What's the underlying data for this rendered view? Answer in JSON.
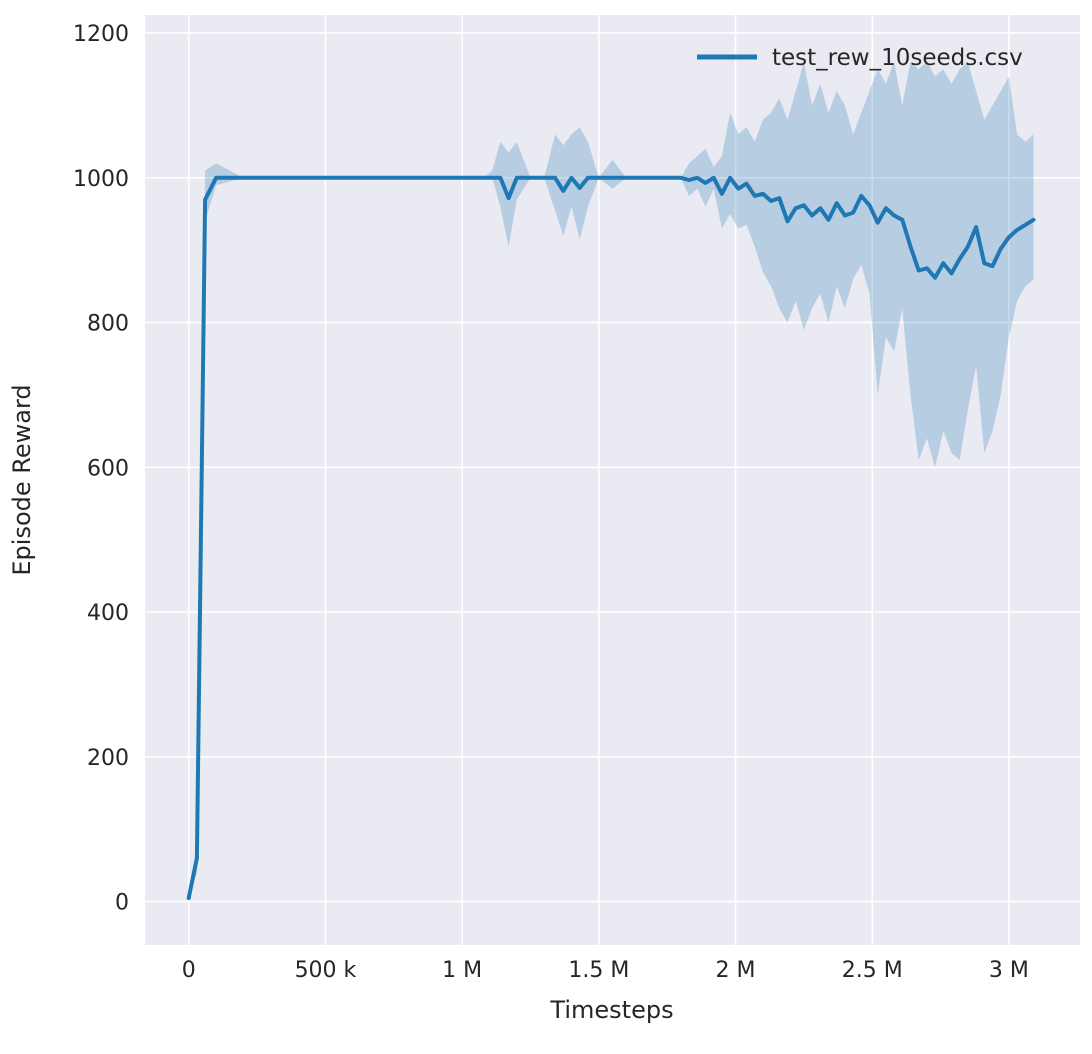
{
  "chart_data": {
    "type": "line",
    "title": "",
    "xlabel": "Timesteps",
    "ylabel": "Episode Reward",
    "grid": true,
    "legend_position": "upper right",
    "legend": [
      {
        "label": "test_rew_10seeds.csv",
        "color": "#1f77b4"
      }
    ],
    "xlim": [
      -160000,
      3260000
    ],
    "ylim": [
      -60,
      1225
    ],
    "x_ticks": {
      "values": [
        0,
        500000,
        1000000,
        1500000,
        2000000,
        2500000,
        3000000
      ],
      "labels": [
        "0",
        "500 k",
        "1 M",
        "1.5 M",
        "2 M",
        "2.5 M",
        "3 M"
      ]
    },
    "y_ticks": {
      "values": [
        0,
        200,
        400,
        600,
        800,
        1000,
        1200
      ],
      "labels": [
        "0",
        "200",
        "400",
        "600",
        "800",
        "1000",
        "1200"
      ]
    },
    "styles": {
      "figure_bg": "#ffffff",
      "plot_bg": "#eaeaf2",
      "grid_color": "#ffffff",
      "text_color": "#262626"
    },
    "series": [
      {
        "name": "test_rew_10seeds.csv",
        "color": "#1f77b4",
        "band_opacity": 0.25,
        "x": [
          0,
          30000,
          60000,
          100000,
          200000,
          400000,
          600000,
          800000,
          1000000,
          1080000,
          1110000,
          1140000,
          1170000,
          1200000,
          1250000,
          1300000,
          1340000,
          1370000,
          1400000,
          1430000,
          1460000,
          1500000,
          1550000,
          1600000,
          1700000,
          1800000,
          1830000,
          1860000,
          1890000,
          1920000,
          1950000,
          1980000,
          2010000,
          2040000,
          2070000,
          2100000,
          2130000,
          2160000,
          2190000,
          2220000,
          2250000,
          2280000,
          2310000,
          2340000,
          2370000,
          2400000,
          2430000,
          2460000,
          2490000,
          2520000,
          2550000,
          2580000,
          2610000,
          2640000,
          2670000,
          2700000,
          2730000,
          2760000,
          2790000,
          2820000,
          2850000,
          2880000,
          2910000,
          2940000,
          2970000,
          3000000,
          3030000,
          3060000,
          3090000
        ],
        "mean": [
          5,
          60,
          970,
          1000,
          1000,
          1000,
          1000,
          1000,
          1000,
          1000,
          1000,
          1000,
          972,
          1000,
          1000,
          1000,
          1000,
          982,
          1000,
          986,
          1000,
          1000,
          1000,
          1000,
          1000,
          1000,
          997,
          1000,
          993,
          1000,
          978,
          1000,
          985,
          992,
          975,
          978,
          968,
          972,
          940,
          958,
          962,
          948,
          958,
          942,
          965,
          948,
          952,
          975,
          962,
          938,
          958,
          948,
          942,
          905,
          872,
          875,
          862,
          882,
          868,
          888,
          905,
          932,
          882,
          878,
          902,
          918,
          928,
          935,
          942
        ],
        "lower": [
          5,
          40,
          940,
          990,
          1000,
          1000,
          1000,
          1000,
          1000,
          1000,
          1000,
          960,
          905,
          970,
          1000,
          1000,
          955,
          920,
          960,
          915,
          960,
          1000,
          985,
          1000,
          1000,
          1000,
          975,
          985,
          960,
          985,
          930,
          950,
          930,
          935,
          905,
          870,
          850,
          820,
          800,
          830,
          790,
          820,
          840,
          800,
          850,
          820,
          860,
          880,
          840,
          700,
          780,
          760,
          820,
          700,
          610,
          640,
          600,
          650,
          620,
          610,
          680,
          740,
          620,
          650,
          700,
          780,
          830,
          850,
          860
        ],
        "upper": [
          5,
          80,
          1010,
          1020,
          1000,
          1000,
          1000,
          1000,
          1000,
          1000,
          1010,
          1050,
          1035,
          1050,
          1000,
          1000,
          1060,
          1045,
          1060,
          1070,
          1050,
          1000,
          1025,
          1000,
          1000,
          1000,
          1020,
          1030,
          1040,
          1015,
          1030,
          1090,
          1060,
          1070,
          1050,
          1080,
          1090,
          1110,
          1080,
          1120,
          1160,
          1100,
          1130,
          1090,
          1120,
          1100,
          1060,
          1090,
          1120,
          1150,
          1130,
          1160,
          1100,
          1160,
          1150,
          1160,
          1140,
          1150,
          1130,
          1150,
          1160,
          1120,
          1080,
          1100,
          1120,
          1140,
          1060,
          1050,
          1060
        ]
      }
    ]
  }
}
